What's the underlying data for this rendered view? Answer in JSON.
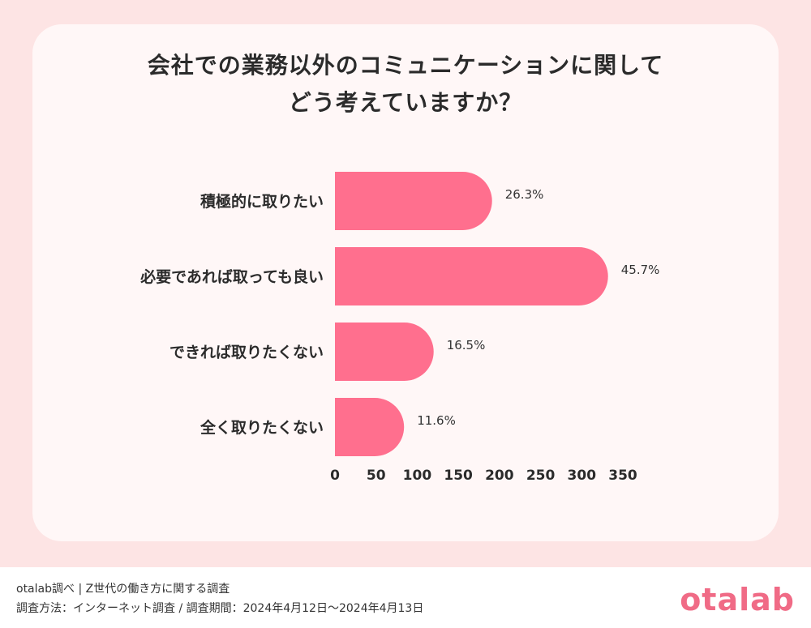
{
  "title": {
    "line1": "会社での業務以外のコミュニケーションに関して",
    "line2": "どう考えていますか？"
  },
  "chart_data": {
    "type": "bar",
    "orientation": "horizontal",
    "categories": [
      "積極的に取りたい",
      "必要であれば取っても良い",
      "できれば取りたくない",
      "全く取りたくない"
    ],
    "values": [
      191,
      332,
      120,
      84
    ],
    "value_labels": [
      "26.3%",
      "45.7%",
      "16.5%",
      "11.6%"
    ],
    "xlim": [
      0,
      350
    ],
    "xticks": [
      "0",
      "50",
      "100",
      "150",
      "200",
      "250",
      "300",
      "350"
    ],
    "grid": false,
    "bar_color": "#ff6f8e"
  },
  "footer": {
    "source": "otalab調べ | Z世代の働き方に関する調査",
    "method": "調査方法：インターネット調査 / 調査期間：2024年4月12日〜2024年4月13日"
  },
  "logo": "otalab"
}
